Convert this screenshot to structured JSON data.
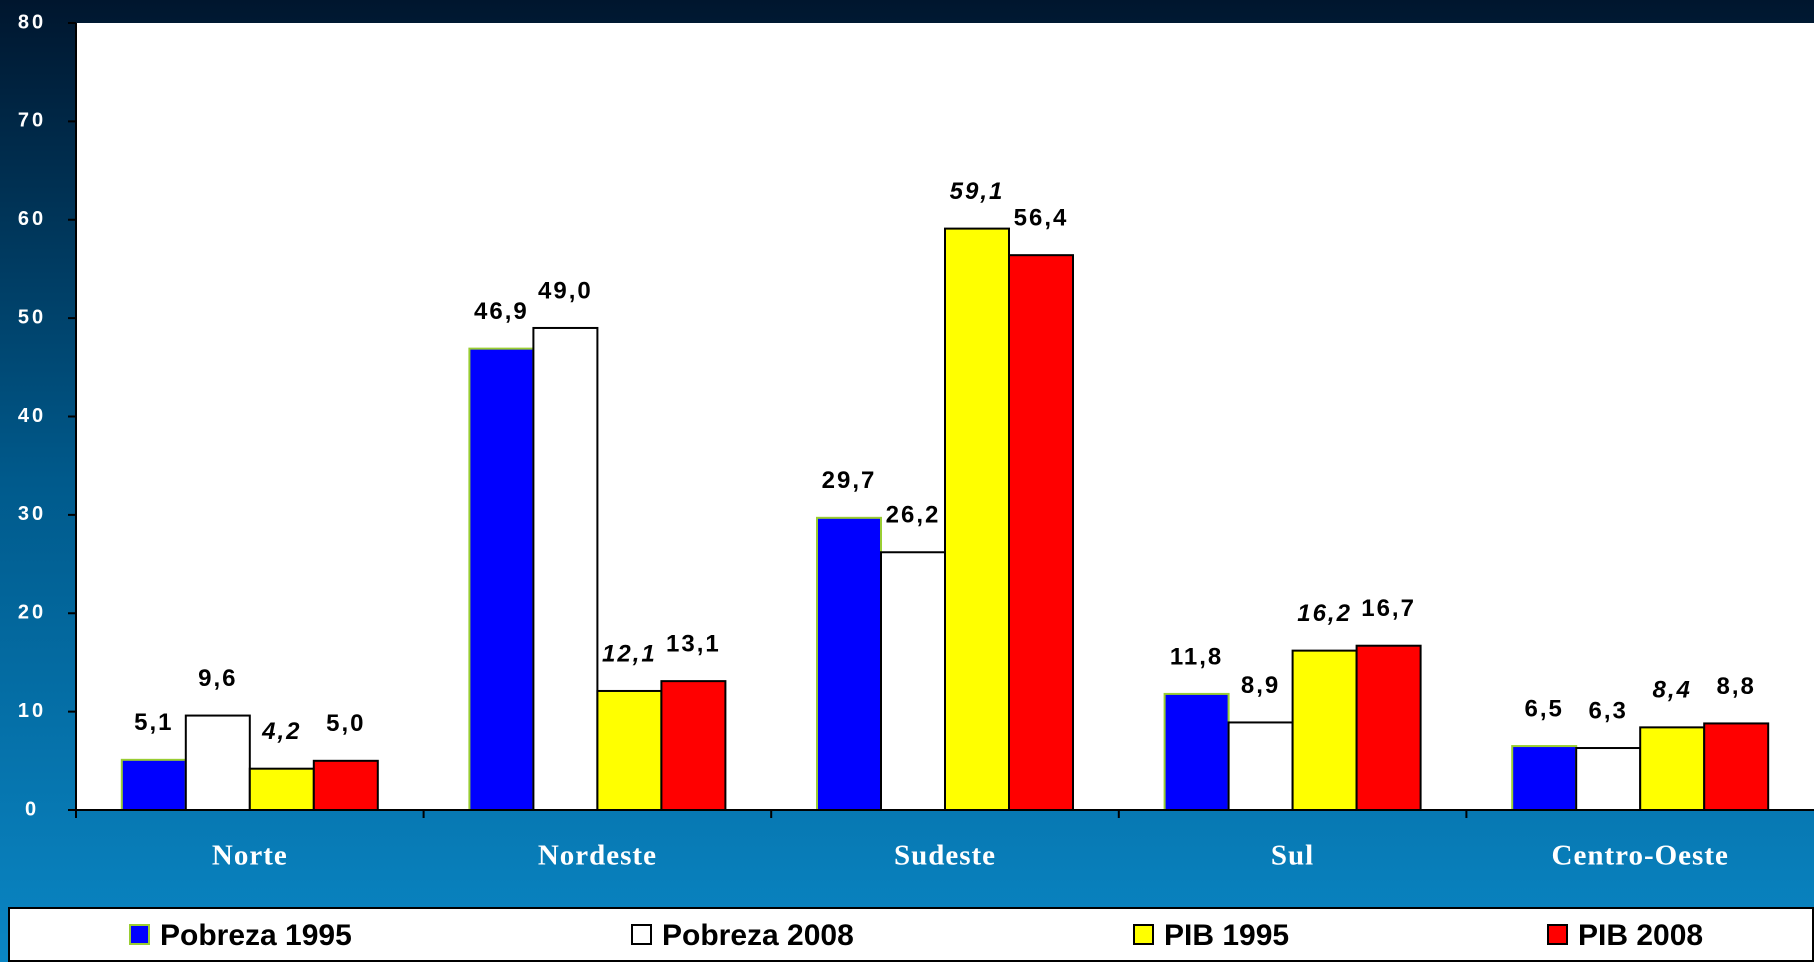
{
  "chart_data": {
    "type": "bar",
    "categories": [
      "Norte",
      "Nordeste",
      "Sudeste",
      "Sul",
      "Centro-Oeste"
    ],
    "series": [
      {
        "name": "Pobreza 1995",
        "color": "#0000ff",
        "values": [
          5.1,
          46.9,
          29.7,
          11.8,
          6.5
        ],
        "value_labels": [
          "5,1",
          "46,9",
          "29,7",
          "11,8",
          "6,5"
        ]
      },
      {
        "name": "Pobreza 2008",
        "color": "#ffffff",
        "values": [
          9.6,
          49.0,
          26.2,
          8.9,
          6.3
        ],
        "value_labels": [
          "9,6",
          "49,0",
          "26,2",
          "8,9",
          "6,3"
        ]
      },
      {
        "name": "PIB 1995",
        "color": "#ffff00",
        "values": [
          4.2,
          12.1,
          59.1,
          16.2,
          8.4
        ],
        "value_labels": [
          "4,2",
          "12,1",
          "59,1",
          "16,2",
          "8,4"
        ]
      },
      {
        "name": "PIB 2008",
        "color": "#ff0000",
        "values": [
          5.0,
          13.1,
          56.4,
          16.7,
          8.8
        ],
        "value_labels": [
          "5,0",
          "13,1",
          "56,4",
          "16,7",
          "8,8"
        ]
      }
    ],
    "ylim": [
      0,
      80
    ],
    "yticks": [
      0,
      10,
      20,
      30,
      40,
      50,
      60,
      70,
      80
    ],
    "legend": "bottom"
  }
}
